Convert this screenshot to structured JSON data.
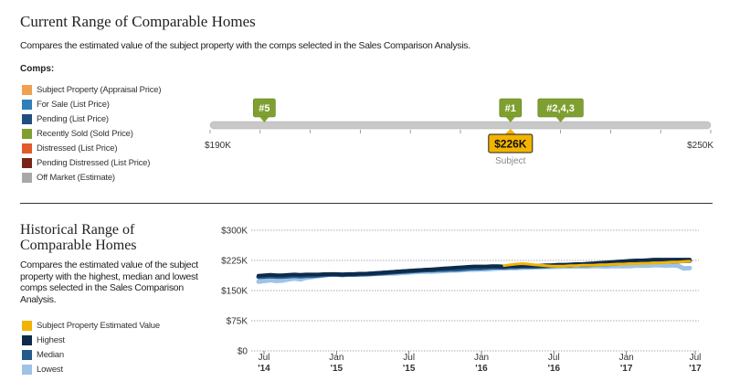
{
  "current": {
    "title": "Current Range of Comparable Homes",
    "subtitle": "Compares the estimated value of the subject property with the comps selected in the Sales Comparison Analysis.",
    "comps_label": "Comps:",
    "legend": [
      {
        "label": "Subject Property (Appraisal Price)",
        "color": "#f0a050"
      },
      {
        "label": "For Sale (List Price)",
        "color": "#2f7fb8"
      },
      {
        "label": "Pending (List Price)",
        "color": "#1f4f7f"
      },
      {
        "label": "Recently Sold (Sold Price)",
        "color": "#7fa030"
      },
      {
        "label": "Distressed (List Price)",
        "color": "#e05a2a"
      },
      {
        "label": "Pending Distressed (List Price)",
        "color": "#7a2216"
      },
      {
        "label": "Off Market (Estimate)",
        "color": "#a8a8a8"
      }
    ]
  },
  "historical": {
    "title": "Historical Range of Comparable Homes",
    "subtitle": "Compares the estimated value of the subject property with the highest, median and lowest comps selected in the Sales Comparison Analysis.",
    "legend": [
      {
        "label": "Subject Property Estimated Value",
        "color": "#f2b400"
      },
      {
        "label": "Highest",
        "color": "#0d2a4a"
      },
      {
        "label": "Median",
        "color": "#245a8c"
      },
      {
        "label": "Lowest",
        "color": "#9ec3e6"
      }
    ]
  },
  "chart_data": [
    {
      "type": "range",
      "min_label": "$190K",
      "max_label": "$250K",
      "range": [
        190,
        250
      ],
      "subject": {
        "label": "$226K",
        "value": 226,
        "caption": "Subject",
        "color": "#f2b400"
      },
      "markers": [
        {
          "label": "#5",
          "value": 196.5,
          "color": "#7fa030"
        },
        {
          "label": "#1",
          "value": 226,
          "color": "#7fa030"
        },
        {
          "label": "#2,4,3",
          "value": 232,
          "color": "#7fa030"
        }
      ]
    },
    {
      "type": "line",
      "x_ticks": [
        "Jul\n'14",
        "Jan\n'15",
        "Jul\n'15",
        "Jan\n'16",
        "Jul\n'16",
        "Jan\n'17",
        "Jul\n'17"
      ],
      "y_ticks": [
        "$0",
        "$75K",
        "$150K",
        "$225K",
        "$300K"
      ],
      "ylim": [
        0,
        300
      ],
      "y_tick_values": [
        0,
        75,
        150,
        225,
        300
      ],
      "x": [
        0,
        0.5,
        1,
        1.5,
        2,
        2.5,
        3,
        3.5,
        4,
        4.5,
        5,
        5.5,
        6,
        6.5,
        7,
        7.5,
        8,
        8.5,
        9,
        9.5,
        10,
        10.5,
        11,
        11.5,
        12,
        12.5,
        13,
        13.5,
        14,
        14.5,
        15,
        15.5,
        16,
        16.5,
        17,
        17.5,
        18,
        18.5,
        19,
        19.5,
        20,
        20.5,
        21,
        21.5,
        22,
        22.5,
        23,
        23.5,
        24,
        24.5,
        25,
        25.5,
        26,
        26.5,
        27,
        27.5,
        28,
        28.5,
        29,
        29.5,
        30,
        30.5,
        31,
        31.5,
        32,
        32.5,
        33,
        33.5,
        34,
        34.5,
        35,
        35.5,
        36
      ],
      "series": [
        {
          "name": "Lowest",
          "color": "#9ec3e6",
          "width": 5,
          "values": [
            172,
            174,
            176,
            174,
            175,
            178,
            180,
            178,
            182,
            184,
            186,
            188,
            190,
            190,
            189,
            190,
            190,
            190,
            191,
            191,
            192,
            192,
            193,
            193,
            194,
            195,
            196,
            197,
            197,
            197,
            198,
            199,
            200,
            200,
            201,
            202,
            202,
            203,
            203,
            204,
            205,
            205,
            206,
            206,
            207,
            207,
            208,
            208,
            209,
            209,
            209,
            210,
            210,
            210,
            210,
            210,
            211,
            211,
            210,
            211,
            211,
            211,
            211,
            212,
            212,
            212,
            213,
            213,
            212,
            213,
            212,
            205,
            206
          ]
        },
        {
          "name": "Median",
          "color": "#245a8c",
          "width": 5,
          "values": [
            184,
            185,
            186,
            185,
            185,
            186,
            187,
            186,
            187,
            187,
            188,
            189,
            190,
            190,
            189,
            190,
            190,
            191,
            191,
            192,
            193,
            194,
            195,
            196,
            197,
            198,
            199,
            200,
            201,
            201,
            202,
            202,
            203,
            203,
            204,
            205,
            206,
            206,
            207,
            208,
            208,
            208,
            209,
            209,
            210,
            210,
            210,
            211,
            211,
            212,
            213,
            213,
            213,
            214,
            214,
            214,
            215,
            216,
            216,
            217,
            218,
            219,
            220,
            220,
            221,
            222,
            222,
            222,
            223,
            223,
            223,
            224,
            224
          ]
        },
        {
          "name": "Highest",
          "color": "#0d2a4a",
          "width": 4,
          "values": [
            187,
            188,
            189,
            188,
            188,
            189,
            190,
            189,
            190,
            190,
            190,
            191,
            191,
            191,
            190,
            191,
            191,
            192,
            192,
            193,
            194,
            195,
            196,
            197,
            198,
            199,
            200,
            201,
            202,
            203,
            204,
            205,
            206,
            207,
            208,
            209,
            210,
            210,
            210,
            211,
            211,
            210,
            211,
            211,
            212,
            212,
            212,
            212,
            213,
            213,
            214,
            214,
            215,
            216,
            216,
            217,
            218,
            219,
            220,
            221,
            222,
            223,
            224,
            225,
            225,
            226,
            227,
            227,
            227,
            227,
            227,
            227,
            227
          ]
        },
        {
          "name": "Subject Property Estimated Value",
          "color": "#f2b400",
          "width": 3,
          "values": [
            null,
            null,
            null,
            null,
            null,
            null,
            null,
            null,
            null,
            null,
            null,
            null,
            null,
            null,
            null,
            null,
            null,
            null,
            null,
            null,
            null,
            null,
            null,
            null,
            null,
            null,
            null,
            null,
            null,
            null,
            null,
            null,
            null,
            null,
            null,
            null,
            null,
            null,
            null,
            null,
            null,
            212,
            214,
            216,
            217,
            216,
            214,
            213,
            212,
            211,
            211,
            211,
            212,
            212,
            213,
            213,
            213,
            214,
            214,
            215,
            216,
            216,
            217,
            217,
            218,
            218,
            219,
            219,
            220,
            221,
            221,
            222,
            223
          ]
        }
      ]
    }
  ]
}
